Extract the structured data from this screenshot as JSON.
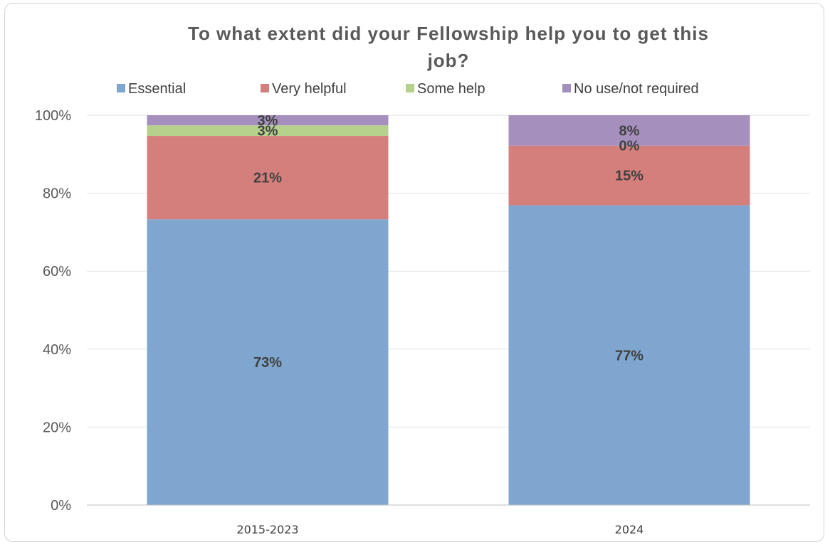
{
  "chart_data": {
    "type": "bar",
    "stacked": true,
    "title_lines": [
      "To what extent did your Fellowship help you to get this",
      "job?"
    ],
    "categories": [
      "2015-2023",
      "2024"
    ],
    "series": [
      {
        "name": "Essential",
        "color": "#7fa6cf",
        "values": [
          73.3,
          76.9
        ],
        "labels": [
          "73%",
          "77%"
        ]
      },
      {
        "name": "Very helpful",
        "color": "#d57f7d",
        "values": [
          21.4,
          15.3
        ],
        "labels": [
          "21%",
          "15%"
        ]
      },
      {
        "name": "Some help",
        "color": "#b6d18c",
        "values": [
          2.7,
          0
        ],
        "labels": [
          "3%",
          "0%"
        ]
      },
      {
        "name": "No use/not required",
        "color": "#a58fbd",
        "values": [
          2.6,
          7.8
        ],
        "labels": [
          "3%",
          "8%"
        ]
      }
    ],
    "ylim": [
      0,
      100
    ],
    "yticks": [
      0,
      20,
      40,
      60,
      80,
      100
    ],
    "ytick_labels": [
      "0%",
      "20%",
      "40%",
      "60%",
      "80%",
      "100%"
    ],
    "xlabel": "",
    "ylabel": "",
    "grid": true,
    "legend_position": "top"
  }
}
